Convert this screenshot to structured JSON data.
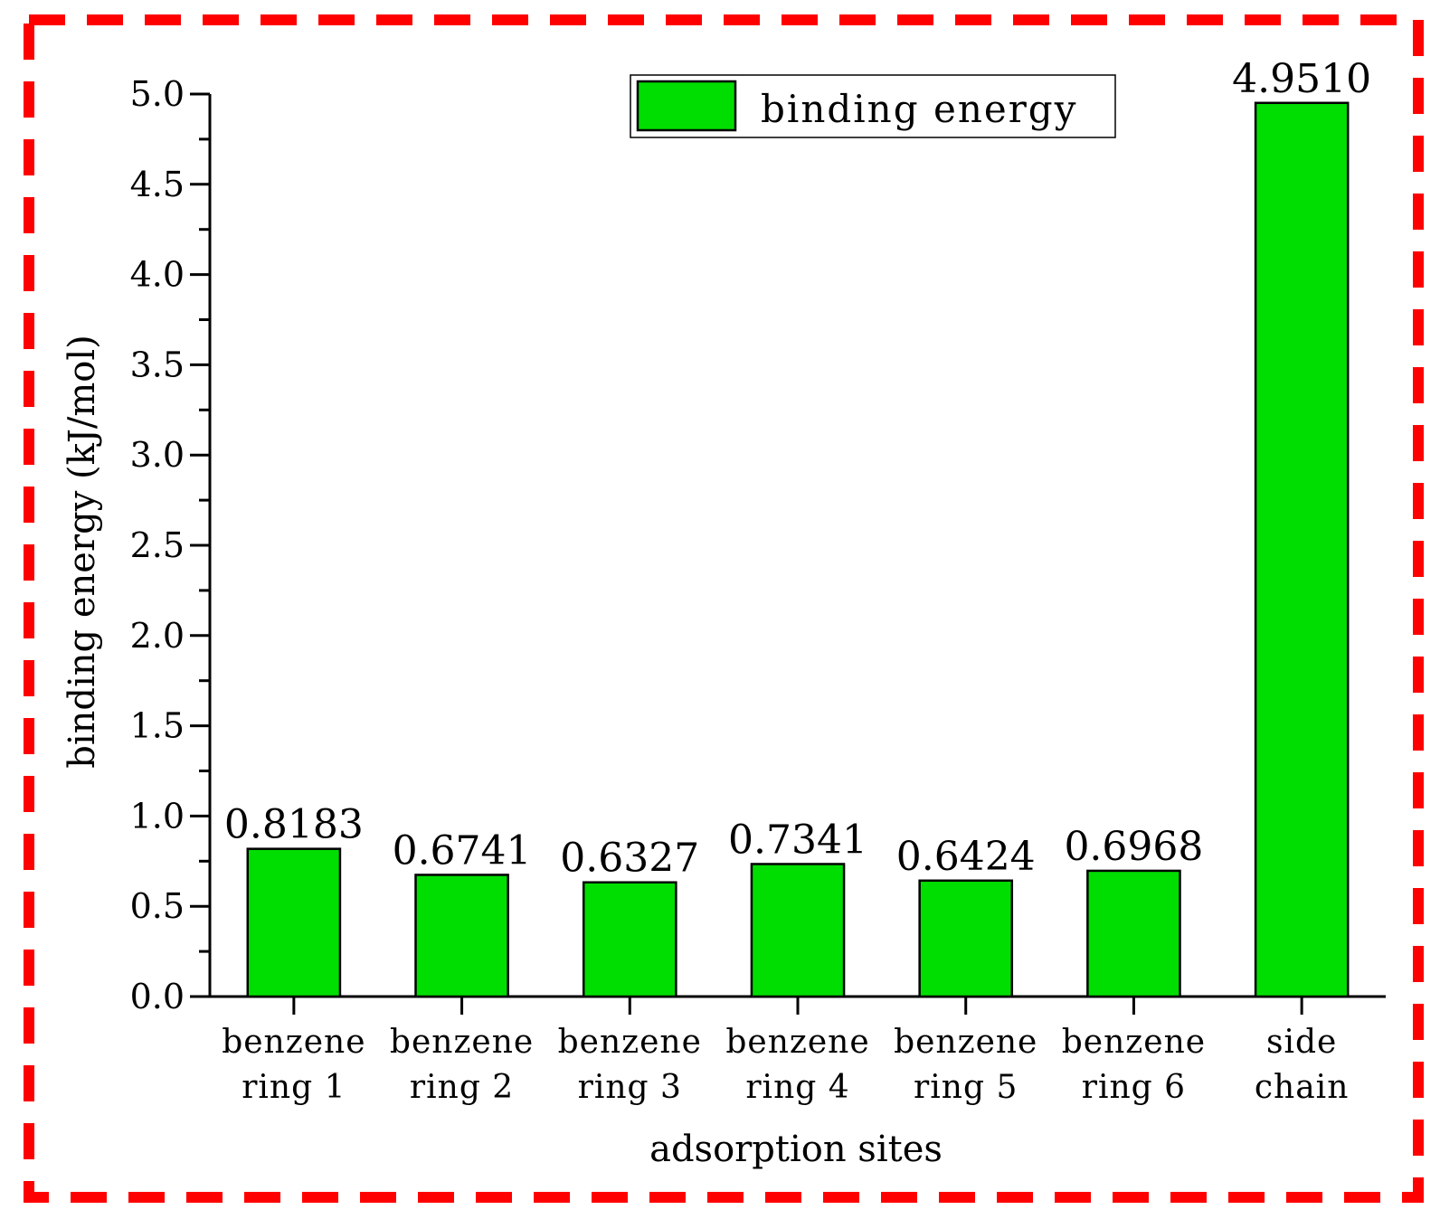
{
  "chart_data": {
    "type": "bar",
    "xlabel": "adsorption sites",
    "ylabel": "binding energy  (kJ/mol)",
    "ylim": [
      0,
      5
    ],
    "yticks": [
      "0.0",
      "0.5",
      "1.0",
      "1.5",
      "2.0",
      "2.5",
      "3.0",
      "3.5",
      "4.0",
      "4.5",
      "5.0"
    ],
    "categories": [
      [
        "benzene",
        "ring 1"
      ],
      [
        "benzene",
        "ring 2"
      ],
      [
        "benzene",
        "ring 3"
      ],
      [
        "benzene",
        "ring 4"
      ],
      [
        "benzene",
        "ring 5"
      ],
      [
        "benzene",
        "ring 6"
      ],
      [
        "side",
        "chain"
      ]
    ],
    "series": [
      {
        "name": "binding energy",
        "color": "#00dd00",
        "values": [
          0.8183,
          0.6741,
          0.6327,
          0.7341,
          0.6424,
          0.6968,
          4.951
        ],
        "labels": [
          "0.8183",
          "0.6741",
          "0.6327",
          "0.7341",
          "0.6424",
          "0.6968",
          "4.9510"
        ]
      }
    ],
    "legend_position": "top-right",
    "grid": false
  },
  "frame": {
    "border_color": "#ff0000",
    "border_style": "dashed"
  }
}
